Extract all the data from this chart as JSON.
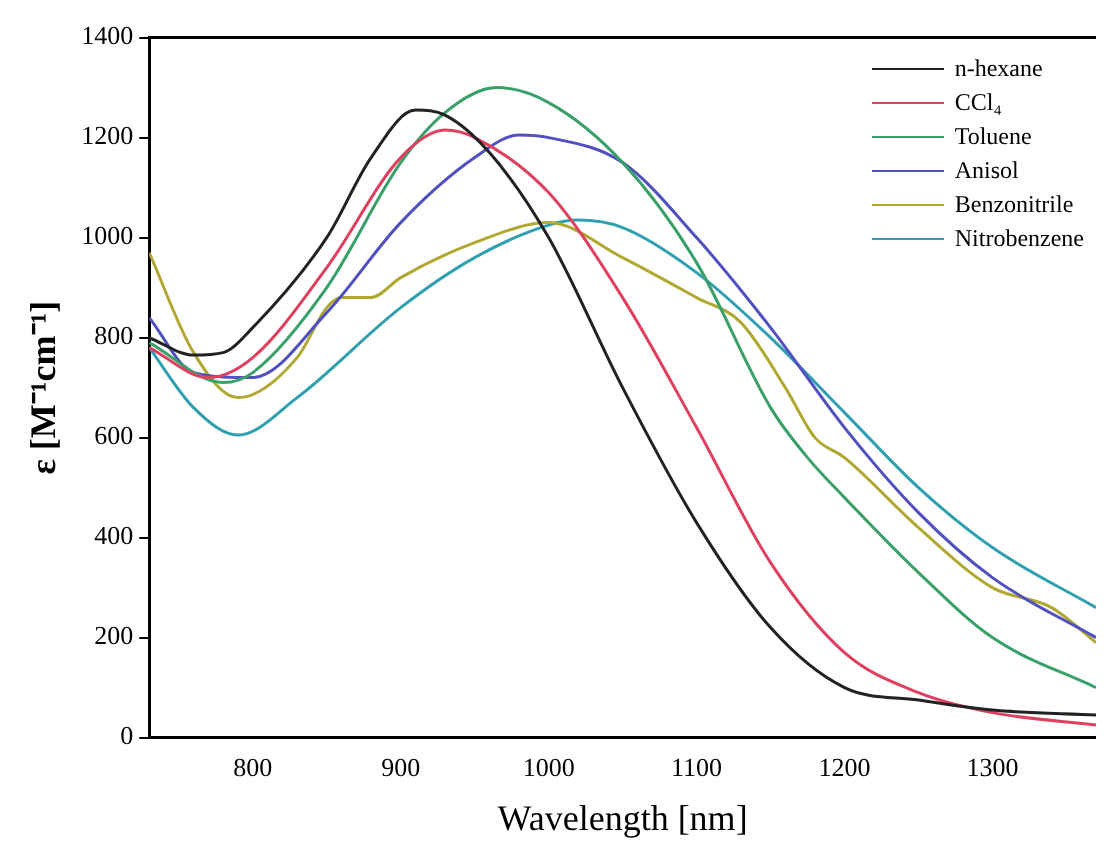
{
  "chart_data": {
    "type": "line",
    "xlabel": "Wavelength [nm]",
    "ylabel": "ε [M⁻¹cm⁻¹]",
    "xlim": [
      730,
      1370
    ],
    "xticks": [
      800,
      900,
      1000,
      1100,
      1200,
      1300
    ],
    "ylim": [
      0,
      1400
    ],
    "yticks": [
      0,
      200,
      400,
      600,
      800,
      1000,
      1200,
      1400
    ],
    "grid": false,
    "legend": "top right",
    "marker": "none",
    "line_style": "solid",
    "series": [
      {
        "name": "n-hexane",
        "color": "#222222",
        "x": [
          730,
          760,
          780,
          800,
          850,
          880,
          910,
          930,
          960,
          1000,
          1050,
          1100,
          1150,
          1200,
          1250,
          1300,
          1370
        ],
        "values": [
          800,
          765,
          770,
          820,
          1000,
          1160,
          1255,
          1245,
          1170,
          1000,
          700,
          430,
          220,
          100,
          75,
          55,
          45
        ]
      },
      {
        "name": "CCl₄",
        "color": "#e04060",
        "x": [
          730,
          770,
          800,
          850,
          900,
          930,
          950,
          1000,
          1050,
          1100,
          1150,
          1200,
          1250,
          1300,
          1370
        ],
        "values": [
          780,
          720,
          760,
          940,
          1160,
          1215,
          1200,
          1090,
          880,
          620,
          350,
          170,
          90,
          50,
          25
        ]
      },
      {
        "name": "Toluene",
        "color": "#3aa06a",
        "x": [
          730,
          780,
          800,
          850,
          900,
          930,
          965,
          1000,
          1050,
          1100,
          1150,
          1175,
          1200,
          1250,
          1300,
          1370
        ],
        "values": [
          790,
          710,
          730,
          900,
          1150,
          1250,
          1300,
          1270,
          1150,
          950,
          660,
          560,
          480,
          330,
          200,
          100
        ]
      },
      {
        "name": "Anisol",
        "color": "#5050c0",
        "x": [
          730,
          760,
          800,
          850,
          900,
          950,
          980,
          1000,
          1050,
          1100,
          1150,
          1200,
          1250,
          1300,
          1370
        ],
        "values": [
          840,
          730,
          720,
          850,
          1030,
          1160,
          1205,
          1200,
          1150,
          1000,
          820,
          620,
          450,
          320,
          200
        ]
      },
      {
        "name": "Benzonitrile",
        "color": "#b0a830",
        "x": [
          730,
          760,
          790,
          830,
          850,
          860,
          880,
          900,
          950,
          1000,
          1050,
          1100,
          1130,
          1160,
          1180,
          1200,
          1250,
          1300,
          1340,
          1370
        ],
        "values": [
          970,
          770,
          680,
          760,
          860,
          880,
          880,
          920,
          990,
          1030,
          960,
          880,
          830,
          700,
          600,
          560,
          420,
          300,
          260,
          190
        ]
      },
      {
        "name": "Nitrobenzene",
        "color": "#30a0b0",
        "x": [
          730,
          760,
          790,
          830,
          900,
          950,
          1000,
          1020,
          1050,
          1100,
          1150,
          1200,
          1250,
          1300,
          1370
        ],
        "values": [
          780,
          660,
          605,
          680,
          860,
          960,
          1025,
          1035,
          1020,
          930,
          800,
          650,
          500,
          380,
          260
        ]
      }
    ]
  }
}
